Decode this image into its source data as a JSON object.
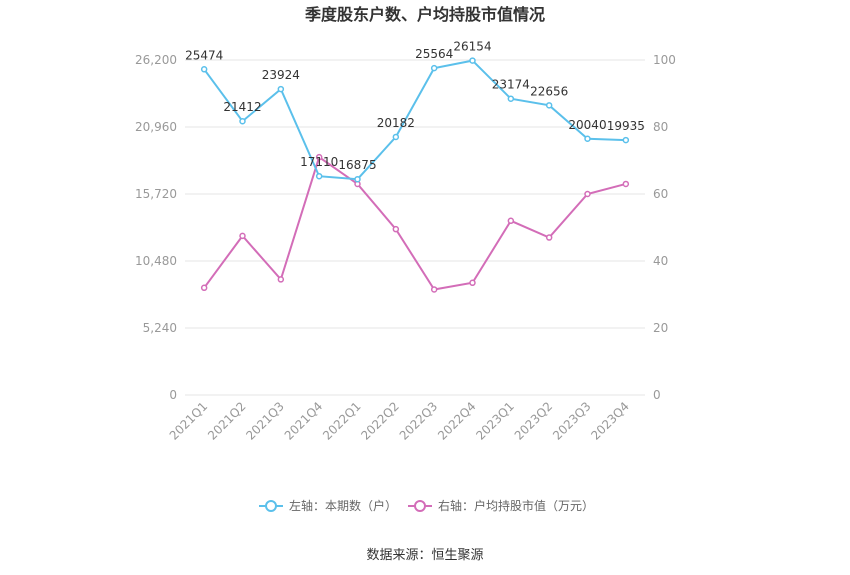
{
  "chart_data": {
    "type": "line",
    "title": "季度股东户数、户均持股市值情况",
    "categories": [
      "2021Q1",
      "2021Q2",
      "2021Q3",
      "2021Q4",
      "2022Q1",
      "2022Q2",
      "2022Q3",
      "2022Q4",
      "2023Q1",
      "2023Q2",
      "2023Q3",
      "2023Q4"
    ],
    "left_axis": {
      "ticks": [
        "0",
        "5,240",
        "10,480",
        "15,720",
        "20,960",
        "26,200"
      ],
      "ylim": [
        0,
        26200
      ]
    },
    "right_axis": {
      "ticks": [
        "0",
        "20",
        "40",
        "60",
        "80",
        "100"
      ],
      "ylim": [
        0,
        100
      ]
    },
    "series": [
      {
        "name": "左轴：本期数（户）",
        "axis": "left",
        "color": "#5bc0eb",
        "values": [
          25474,
          21412,
          23924,
          17110,
          16875,
          20182,
          25564,
          26154,
          23174,
          22656,
          20040,
          19935
        ],
        "labels": [
          "25474",
          "21412",
          "23924",
          "17110",
          "16875",
          "20182",
          "25564",
          "26154",
          "23174",
          "22656",
          "20040",
          "19935"
        ]
      },
      {
        "name": "右轴：户均持股市值（万元）",
        "axis": "right",
        "color": "#d36db8",
        "values": [
          32,
          47.5,
          34.5,
          71,
          63,
          49.5,
          31.5,
          33.5,
          52,
          47,
          60,
          63
        ]
      }
    ],
    "grid": true,
    "legend_position": "bottom"
  },
  "source": "数据来源：恒生聚源"
}
